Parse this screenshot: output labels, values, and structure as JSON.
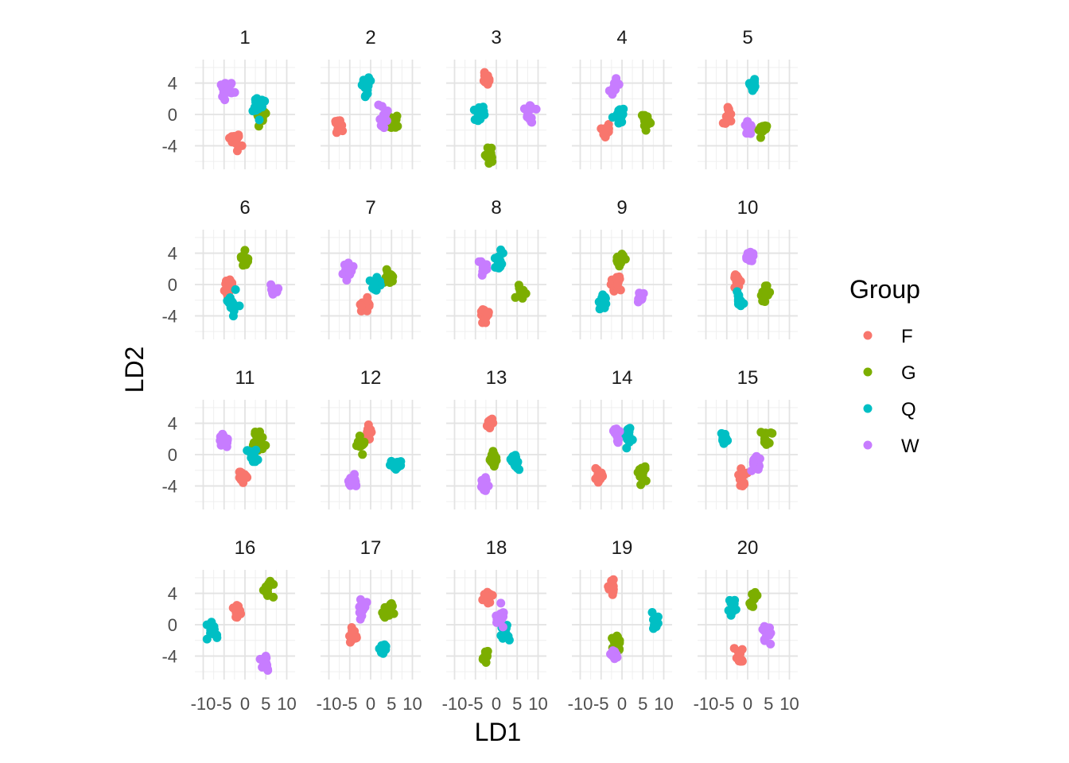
{
  "chart_data": {
    "type": "scatter",
    "layout": "facet_wrap",
    "ncol": 5,
    "xlabel": "LD1",
    "ylabel": "LD2",
    "xlim": [
      -12,
      12
    ],
    "ylim": [
      -7,
      7
    ],
    "xticks": [
      -10,
      -5,
      0,
      5,
      10
    ],
    "xtick_labels": [
      "-10",
      "-5",
      "0",
      "5",
      "10"
    ],
    "yticks": [
      -4,
      0,
      4
    ],
    "ytick_labels": [
      "-4",
      "0",
      "4"
    ],
    "grid": true,
    "legend": {
      "title": "Group",
      "position": "right",
      "entries": [
        {
          "name": "F",
          "color": "#F8766D"
        },
        {
          "name": "G",
          "color": "#7CAE00"
        },
        {
          "name": "Q",
          "color": "#00BFC4"
        },
        {
          "name": "W",
          "color": "#C77CFF"
        }
      ]
    },
    "panels": [
      {
        "label": "1",
        "groups": {
          "F": [
            -2.5,
            -3.2,
            1.3
          ],
          "G": [
            3.5,
            0.0,
            1.0
          ],
          "Q": [
            3.2,
            0.8,
            1.2
          ],
          "W": [
            -4.0,
            2.8,
            1.3
          ]
        }
      },
      {
        "label": "2",
        "groups": {
          "F": [
            -7.5,
            -1.5,
            1.0
          ],
          "G": [
            5.5,
            -1.0,
            1.0
          ],
          "Q": [
            -1.0,
            3.5,
            1.1
          ],
          "W": [
            3.0,
            -0.2,
            1.2
          ]
        }
      },
      {
        "label": "3",
        "groups": {
          "F": [
            -2.5,
            4.5,
            0.8
          ],
          "G": [
            -1.5,
            -5.5,
            1.1
          ],
          "Q": [
            -4.0,
            0.0,
            1.3
          ],
          "W": [
            8.0,
            0.3,
            1.1
          ]
        }
      },
      {
        "label": "4",
        "groups": {
          "F": [
            -4.0,
            -2.0,
            1.0
          ],
          "G": [
            5.5,
            -1.0,
            1.2
          ],
          "Q": [
            -0.8,
            0.0,
            1.3
          ],
          "W": [
            -1.5,
            3.2,
            1.2
          ]
        }
      },
      {
        "label": "5",
        "groups": {
          "F": [
            -4.5,
            -0.3,
            1.1
          ],
          "G": [
            3.5,
            -1.8,
            1.0
          ],
          "Q": [
            1.5,
            4.0,
            1.0
          ],
          "W": [
            0.0,
            -2.0,
            1.0
          ]
        }
      },
      {
        "label": "6",
        "groups": {
          "F": [
            -4.0,
            -0.2,
            1.2
          ],
          "G": [
            0.0,
            3.2,
            1.0
          ],
          "Q": [
            -3.0,
            -2.5,
            1.3
          ],
          "W": [
            7.0,
            -0.8,
            1.0
          ]
        }
      },
      {
        "label": "7",
        "groups": {
          "F": [
            -1.5,
            -2.5,
            1.0
          ],
          "G": [
            4.5,
            0.9,
            1.2
          ],
          "Q": [
            1.5,
            0.3,
            1.2
          ],
          "W": [
            -5.5,
            1.8,
            1.2
          ]
        }
      },
      {
        "label": "8",
        "groups": {
          "F": [
            -2.8,
            -4.0,
            1.0
          ],
          "G": [
            6.0,
            -1.0,
            1.2
          ],
          "Q": [
            0.5,
            3.2,
            1.2
          ],
          "W": [
            -3.5,
            2.5,
            1.2
          ]
        }
      },
      {
        "label": "9",
        "groups": {
          "F": [
            -1.5,
            0.3,
            1.3
          ],
          "G": [
            -0.5,
            3.2,
            1.2
          ],
          "Q": [
            -4.5,
            -2.2,
            1.0
          ],
          "W": [
            4.5,
            -1.8,
            1.0
          ]
        }
      },
      {
        "label": "10",
        "groups": {
          "F": [
            -2.5,
            0.5,
            0.9
          ],
          "G": [
            4.0,
            -1.2,
            1.1
          ],
          "Q": [
            -2.0,
            -1.8,
            1.0
          ],
          "W": [
            0.5,
            3.7,
            0.8
          ]
        }
      },
      {
        "label": "11",
        "groups": {
          "F": [
            -0.3,
            -3.0,
            1.1
          ],
          "G": [
            3.2,
            1.8,
            1.3
          ],
          "Q": [
            2.0,
            -0.2,
            1.2
          ],
          "W": [
            -5.0,
            1.5,
            1.1
          ]
        }
      },
      {
        "label": "12",
        "groups": {
          "F": [
            -0.5,
            2.5,
            1.0
          ],
          "G": [
            -2.2,
            1.3,
            1.1
          ],
          "Q": [
            6.0,
            -1.0,
            1.2
          ],
          "W": [
            -4.2,
            -3.5,
            1.0
          ]
        }
      },
      {
        "label": "13",
        "groups": {
          "F": [
            -1.5,
            4.0,
            0.8
          ],
          "G": [
            -1.0,
            -0.5,
            1.0
          ],
          "Q": [
            4.5,
            -0.8,
            1.2
          ],
          "W": [
            -2.8,
            -3.8,
            1.1
          ]
        }
      },
      {
        "label": "14",
        "groups": {
          "F": [
            -5.5,
            -2.5,
            1.0
          ],
          "G": [
            5.0,
            -2.5,
            1.1
          ],
          "Q": [
            1.2,
            2.5,
            1.2
          ],
          "W": [
            -1.2,
            2.7,
            1.0
          ]
        }
      },
      {
        "label": "15",
        "groups": {
          "F": [
            -1.0,
            -2.8,
            1.3
          ],
          "G": [
            4.5,
            2.0,
            1.2
          ],
          "Q": [
            -5.5,
            2.0,
            1.0
          ],
          "W": [
            2.2,
            -1.2,
            1.1
          ]
        }
      },
      {
        "label": "16",
        "groups": {
          "F": [
            -2.0,
            1.8,
            1.0
          ],
          "G": [
            5.5,
            4.5,
            1.2
          ],
          "Q": [
            -8.0,
            -1.0,
            1.2
          ],
          "W": [
            4.8,
            -5.0,
            1.0
          ]
        }
      },
      {
        "label": "17",
        "groups": {
          "F": [
            -4.0,
            -1.5,
            1.0
          ],
          "G": [
            4.0,
            2.0,
            1.3
          ],
          "Q": [
            3.0,
            -3.0,
            0.8
          ],
          "W": [
            -2.0,
            2.2,
            1.2
          ]
        }
      },
      {
        "label": "18",
        "groups": {
          "F": [
            -2.0,
            3.5,
            1.2
          ],
          "G": [
            -2.5,
            -4.0,
            1.0
          ],
          "Q": [
            2.2,
            -1.2,
            1.1
          ],
          "W": [
            1.0,
            1.2,
            1.3
          ]
        }
      },
      {
        "label": "19",
        "groups": {
          "F": [
            -2.5,
            4.5,
            1.0
          ],
          "G": [
            -1.5,
            -2.5,
            1.2
          ],
          "Q": [
            8.0,
            0.5,
            1.1
          ],
          "W": [
            -2.0,
            -4.0,
            0.9
          ]
        }
      },
      {
        "label": "20",
        "groups": {
          "F": [
            -2.0,
            -4.0,
            1.1
          ],
          "G": [
            1.5,
            3.2,
            1.0
          ],
          "Q": [
            -3.5,
            2.2,
            1.0
          ],
          "W": [
            4.5,
            -1.0,
            1.1
          ]
        }
      }
    ]
  }
}
